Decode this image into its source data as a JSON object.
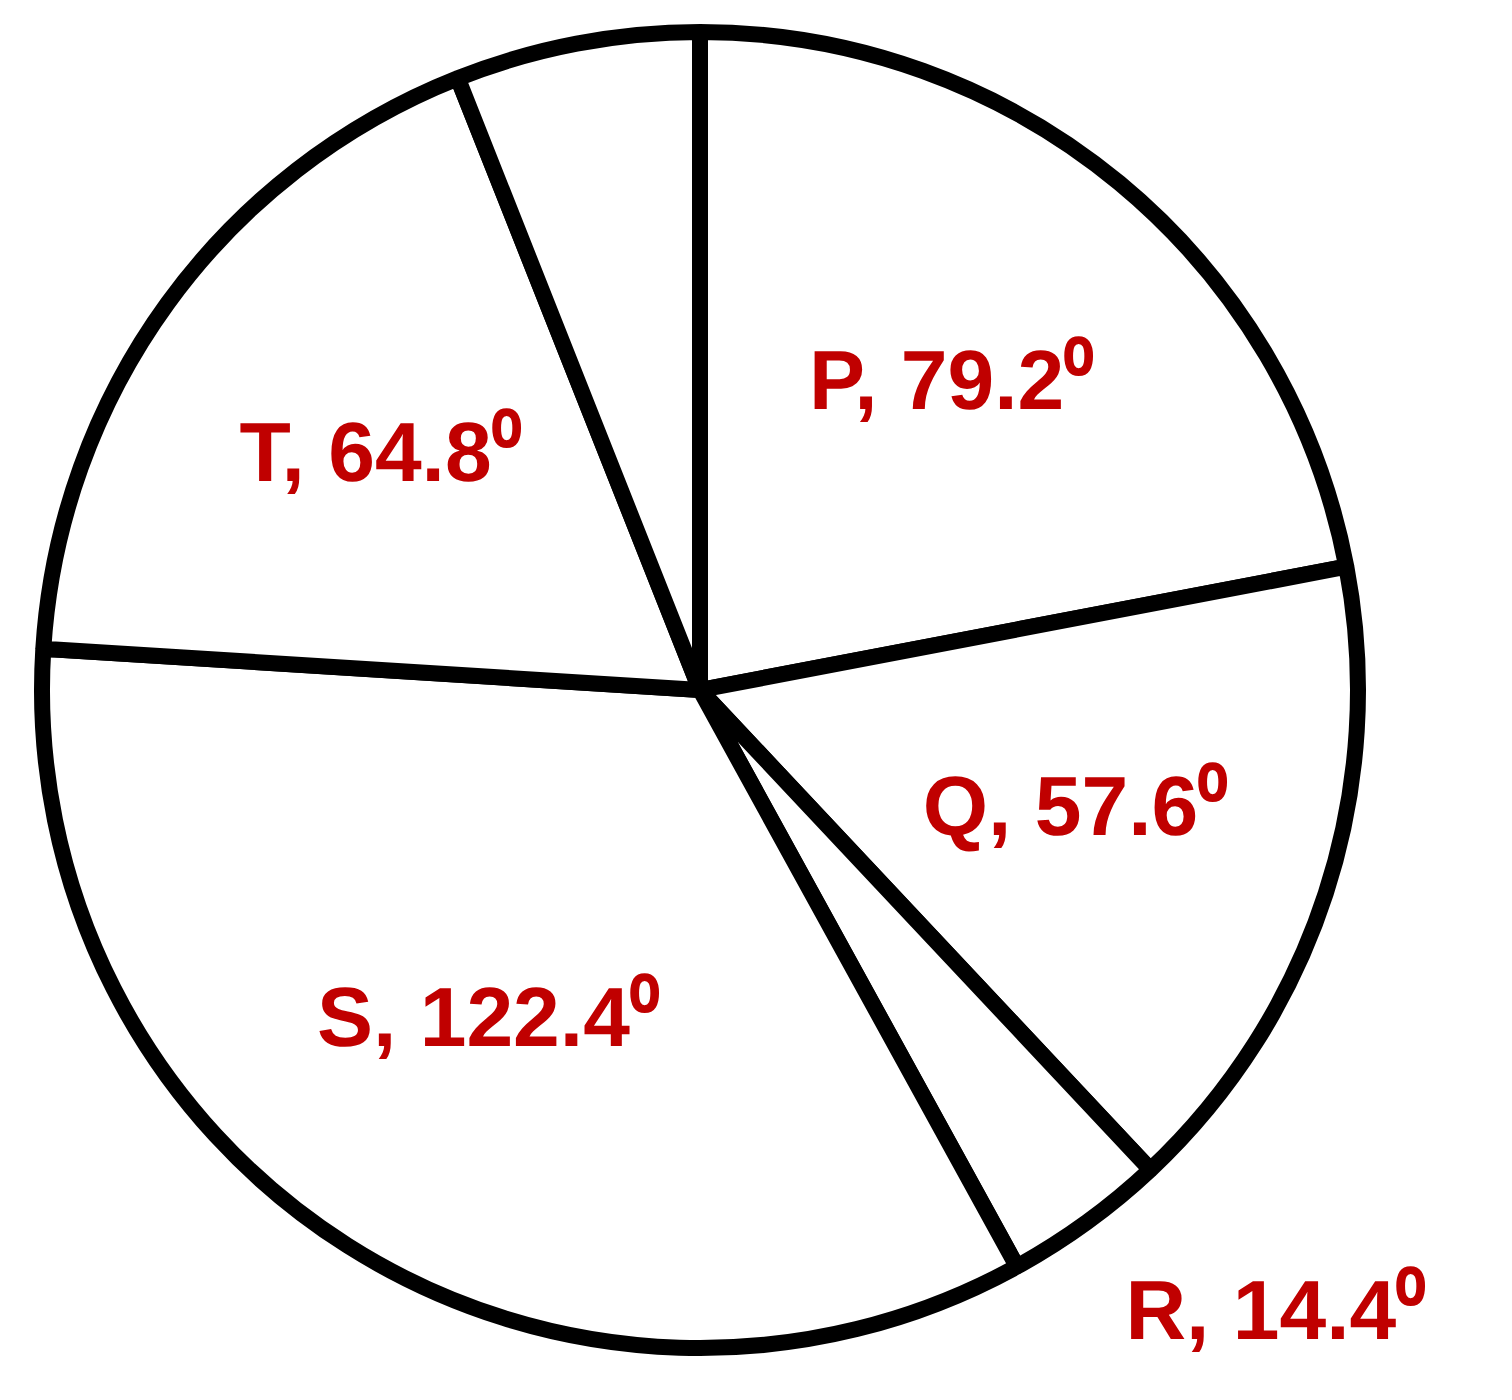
{
  "chart_data": {
    "type": "pie",
    "categories": [
      "P",
      "Q",
      "R",
      "S",
      "T",
      null
    ],
    "values": [
      79.2,
      57.6,
      14.4,
      122.4,
      64.8,
      21.6
    ],
    "colors": [
      "#ffffff",
      "#ffffff",
      "#ffffff",
      "#ffffff",
      "#ffffff",
      "#ffffff"
    ],
    "value_labels": [
      "79.2⁰",
      "57.6⁰",
      "14.4⁰",
      "122.4⁰",
      "64.8⁰",
      null
    ],
    "legend": false
  }
}
